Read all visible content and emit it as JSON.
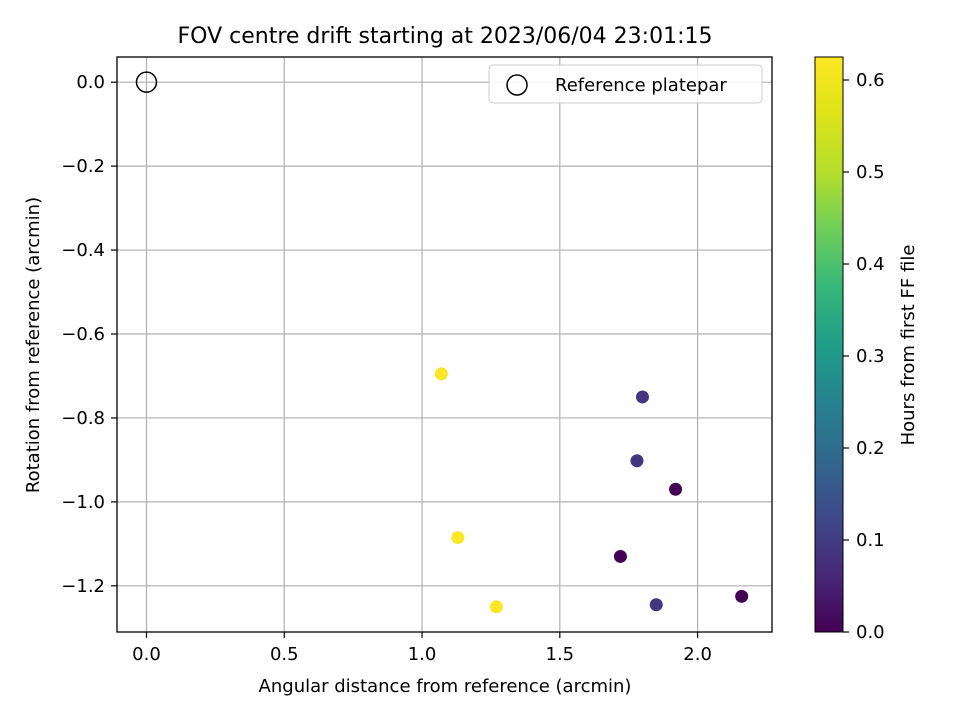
{
  "chart_data": {
    "type": "scatter",
    "title": "FOV centre drift starting at 2023/06/04 23:01:15",
    "xlabel": "Angular distance from reference (arcmin)",
    "ylabel": "Rotation from reference (arcmin)",
    "xlim": [
      -0.107,
      2.27
    ],
    "ylim": [
      -1.31,
      0.06
    ],
    "xticks": [
      0.0,
      0.5,
      1.0,
      1.5,
      2.0
    ],
    "xtick_labels": [
      "0.0",
      "0.5",
      "1.0",
      "1.5",
      "2.0"
    ],
    "yticks": [
      0.0,
      -0.2,
      -0.4,
      -0.6,
      -0.8,
      -1.0,
      -1.2
    ],
    "ytick_labels": [
      "0.0",
      "−0.2",
      "−0.4",
      "−0.6",
      "−0.8",
      "−1.0",
      "−1.2"
    ],
    "grid": true,
    "legend": {
      "location": "top-right",
      "entries": [
        "Reference platepar"
      ]
    },
    "reference_point": {
      "x": 0.0,
      "y": 0.0,
      "label": "Reference platepar"
    },
    "points": [
      {
        "x": 1.07,
        "y": -0.695,
        "hours": 0.625
      },
      {
        "x": 1.8,
        "y": -0.75,
        "hours": 0.09
      },
      {
        "x": 1.78,
        "y": -0.902,
        "hours": 0.09
      },
      {
        "x": 1.92,
        "y": -0.97,
        "hours": 0.0
      },
      {
        "x": 1.13,
        "y": -1.085,
        "hours": 0.625
      },
      {
        "x": 1.72,
        "y": -1.13,
        "hours": 0.0
      },
      {
        "x": 1.27,
        "y": -1.25,
        "hours": 0.625
      },
      {
        "x": 1.85,
        "y": -1.245,
        "hours": 0.09
      },
      {
        "x": 2.16,
        "y": -1.225,
        "hours": 0.0
      }
    ],
    "colorbar": {
      "label": "Hours from first FF file",
      "colormap": "viridis",
      "min": 0.0,
      "max": 0.625,
      "ticks": [
        0.0,
        0.1,
        0.2,
        0.3,
        0.4,
        0.5,
        0.6
      ],
      "tick_labels": [
        "0.0",
        "0.1",
        "0.2",
        "0.3",
        "0.4",
        "0.5",
        "0.6"
      ]
    }
  }
}
